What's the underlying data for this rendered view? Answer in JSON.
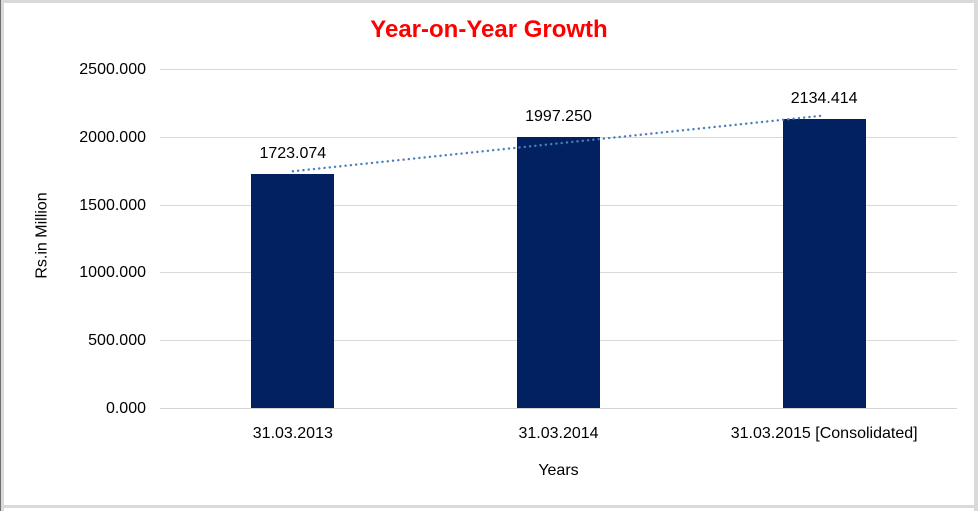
{
  "chart": {
    "title": "Year-on-Year Growth",
    "x_axis_title": "Years",
    "y_axis_title": "Rs.in Million"
  },
  "chart_data": {
    "type": "bar",
    "title": "Year-on-Year Growth",
    "xlabel": "Years",
    "ylabel": "Rs.in Million",
    "categories": [
      "31.03.2013",
      "31.03.2014",
      "31.03.2015 [Consolidated]"
    ],
    "values": [
      1723.074,
      1997.25,
      2134.414
    ],
    "data_labels": [
      "1723.074",
      "1997.250",
      "2134.414"
    ],
    "ylim": [
      0,
      2500
    ],
    "y_tick_step": 500,
    "y_tick_labels": [
      "0.000",
      "500.000",
      "1000.000",
      "1500.000",
      "2000.000",
      "2500.000"
    ],
    "grid": true,
    "legend": "none",
    "colors": {
      "bar": "#022161",
      "title": "#ff0000",
      "trendline": "#4a7ebb",
      "gridline": "#d9d9d9"
    },
    "trendline": {
      "type": "linear",
      "style": "dotted"
    }
  }
}
